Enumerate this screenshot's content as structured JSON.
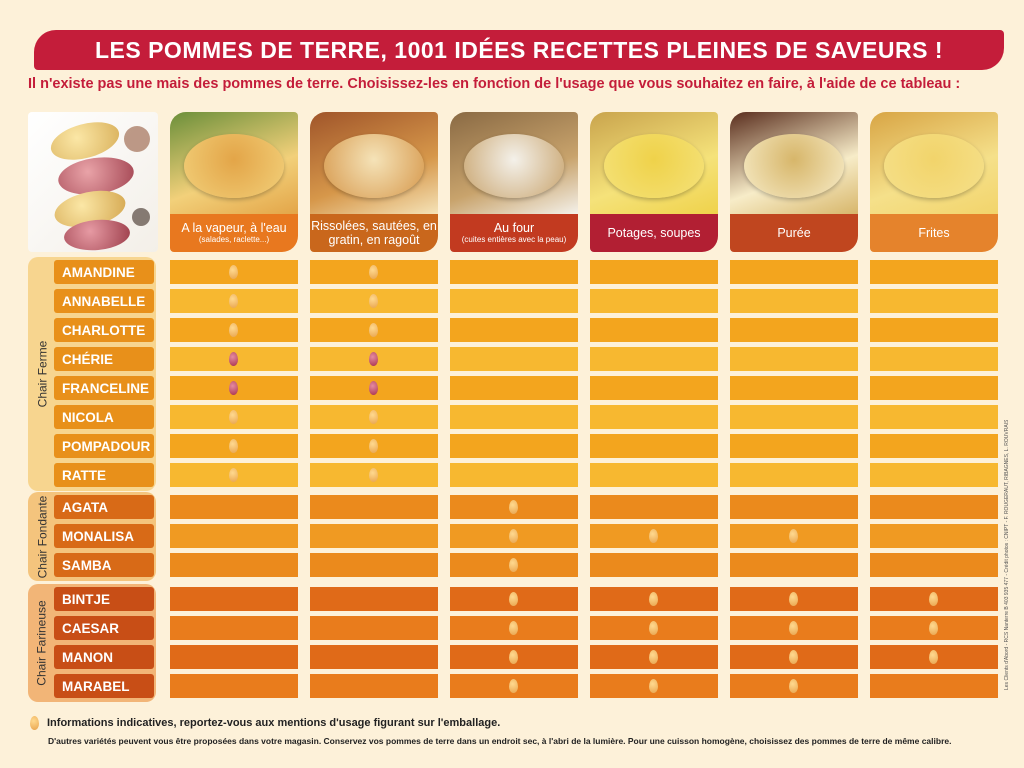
{
  "header": {
    "title": "LES POMMES DE TERRE, 1001 IDÉES RECETTES PLEINES DE SAVEURS !",
    "subtitle": "Il n'existe pas une mais des pommes de terre. Choisissez-les en fonction de l'usage que vous souhaitez en faire, à l'aide de ce tableau :"
  },
  "columns": [
    {
      "label": "A la vapeur, à l'eau",
      "sublabel": "(salades, raclette...)",
      "color": "#e8781f"
    },
    {
      "label": "Rissolées, sautées, en gratin, en ragoût",
      "sublabel": "",
      "color": "#c9671c"
    },
    {
      "label": "Au four",
      "sublabel": "(cuites entières avec la peau)",
      "color": "#c23a20"
    },
    {
      "label": "Potages, soupes",
      "sublabel": "",
      "color": "#b21f33"
    },
    {
      "label": "Purée",
      "sublabel": "",
      "color": "#c0461f"
    },
    {
      "label": "Frites",
      "sublabel": "",
      "color": "#e5832c"
    }
  ],
  "groups": [
    {
      "name": "Chair Ferme",
      "varieties": [
        {
          "name": "AMANDINE",
          "marks": [
            "y",
            "y",
            "",
            "",
            "",
            ""
          ]
        },
        {
          "name": "ANNABELLE",
          "marks": [
            "y",
            "y",
            "",
            "",
            "",
            ""
          ]
        },
        {
          "name": "CHARLOTTE",
          "marks": [
            "y",
            "y",
            "",
            "",
            "",
            ""
          ]
        },
        {
          "name": "CHÉRIE",
          "marks": [
            "r",
            "r",
            "",
            "",
            "",
            ""
          ]
        },
        {
          "name": "FRANCELINE",
          "marks": [
            "r",
            "r",
            "",
            "",
            "",
            ""
          ]
        },
        {
          "name": "NICOLA",
          "marks": [
            "y",
            "y",
            "",
            "",
            "",
            ""
          ]
        },
        {
          "name": "POMPADOUR",
          "marks": [
            "y",
            "y",
            "",
            "",
            "",
            ""
          ]
        },
        {
          "name": "RATTE",
          "marks": [
            "y",
            "y",
            "",
            "",
            "",
            ""
          ]
        }
      ]
    },
    {
      "name": "Chair Fondante",
      "varieties": [
        {
          "name": "AGATA",
          "marks": [
            "",
            "",
            "y",
            "",
            "",
            ""
          ]
        },
        {
          "name": "MONALISA",
          "marks": [
            "",
            "",
            "y",
            "y",
            "y",
            ""
          ]
        },
        {
          "name": "SAMBA",
          "marks": [
            "",
            "",
            "y",
            "",
            "",
            ""
          ]
        }
      ]
    },
    {
      "name": "Chair Farineuse",
      "varieties": [
        {
          "name": "BINTJE",
          "marks": [
            "",
            "",
            "y",
            "y",
            "y",
            "y"
          ]
        },
        {
          "name": "CAESAR",
          "marks": [
            "",
            "",
            "y",
            "y",
            "y",
            "y"
          ]
        },
        {
          "name": "MANON",
          "marks": [
            "",
            "",
            "y",
            "y",
            "y",
            "y"
          ]
        },
        {
          "name": "MARABEL",
          "marks": [
            "",
            "",
            "y",
            "y",
            "y",
            ""
          ]
        }
      ]
    }
  ],
  "footer": {
    "legend_note": "Informations indicatives, reportez-vous aux mentions d'usage figurant sur l'emballage.",
    "advice": "D'autres variétés peuvent vous être proposées dans votre magasin. Conservez vos pommes de terre dans un endroit sec, à l'abri de la lumière. Pour une cuisson homogène, choisissez des pommes de terre de même calibre.",
    "credit": "Les Clients d'Abord - RCS Nanterre B 403 935 477 - Crédit photos : CNIPT - F. ROUGERAUT, RIBAGNES, L. ROUVRAIS"
  },
  "colors": {
    "ferme_row": "#f3a51e",
    "ferme_row_alt": "#f7b830",
    "fondante_row": "#eb8a1c",
    "fondante_row_alt": "#f09a22",
    "farineuse_row": "#e06a18",
    "farineuse_row_alt": "#e97c1c",
    "ferme_name": "#e8901a",
    "fondante_name": "#d86a17",
    "farineuse_name": "#c84e16",
    "banner": "#c41d3a"
  }
}
